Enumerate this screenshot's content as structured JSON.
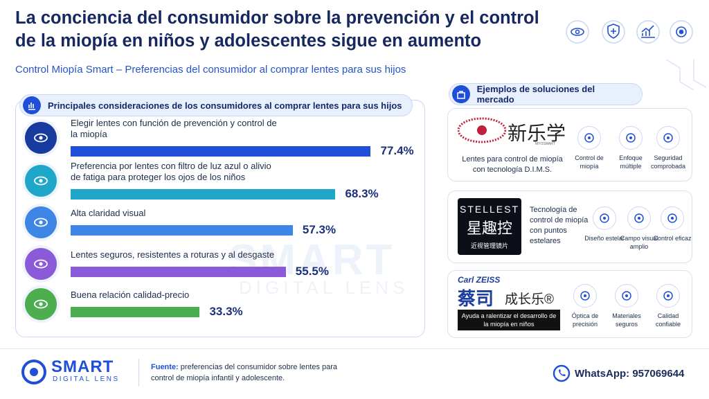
{
  "header": {
    "title": "La conciencia del consumidor sobre la prevención y el control de la miopía en niños y adolescentes sigue en aumento",
    "subtitle": "Control Miopía Smart – Preferencias del consumidor al comprar lentes para sus hijos"
  },
  "chart_data": {
    "type": "bar",
    "orientation": "horizontal",
    "title": "Principales consideraciones de los consumidores al comprar lentes para sus hijos",
    "categories": [
      "Elegir lentes con función de prevención y control de la miopía",
      "Preferencia por lentes con filtro de luz azul o alivio de fatiga para proteger los ojos de los niños",
      "Alta claridad visual",
      "Lentes seguros, resistentes a roturas y al desgaste",
      "Buena relación calidad-precio"
    ],
    "values": [
      77.4,
      68.3,
      57.3,
      55.5,
      33.3
    ],
    "value_labels": [
      "77.4%",
      "68.3%",
      "57.3%",
      "55.5%",
      "33.3%"
    ],
    "colors": [
      "#1f4fd8",
      "#1ea7c8",
      "#3d86e6",
      "#8a5ad8",
      "#4cae4f"
    ]
  },
  "solutions": {
    "title": "Ejemplos de soluciones del mercado",
    "cards": [
      {
        "brand": [
          "新乐学",
          "MYOSMART"
        ],
        "description": "Lentes para control de miopía con tecnología D.I.M.S.",
        "features": [
          "Control de miopía",
          "Enfoque múltiple",
          "Seguridad comprobada"
        ]
      },
      {
        "brand": [
          "STELLEST",
          "星趣控",
          "近视管理镜片"
        ],
        "description": "Tecnología de control de miopía con puntos estelares",
        "features": [
          "Diseño estelar",
          "Campo visual amplio",
          "Control eficaz"
        ]
      },
      {
        "brand": [
          "Carl ZEISS",
          "蔡司",
          "成长乐®"
        ],
        "description": "Ayuda a ralentizar el desarrollo de la miopía en niños",
        "features": [
          "Óptica de precisión",
          "Materiales seguros",
          "Calidad confiable"
        ]
      }
    ]
  },
  "footer": {
    "logo": [
      "SMART",
      "DIGITAL LENS"
    ],
    "source_label": "Fuente:",
    "source": "preferencias del consumidor sobre lentes para control de miopía infantil y adolescente.",
    "whatsapp": "WhatsApp: 957069644"
  },
  "watermark": [
    "SMART",
    "DIGITAL LENS"
  ]
}
